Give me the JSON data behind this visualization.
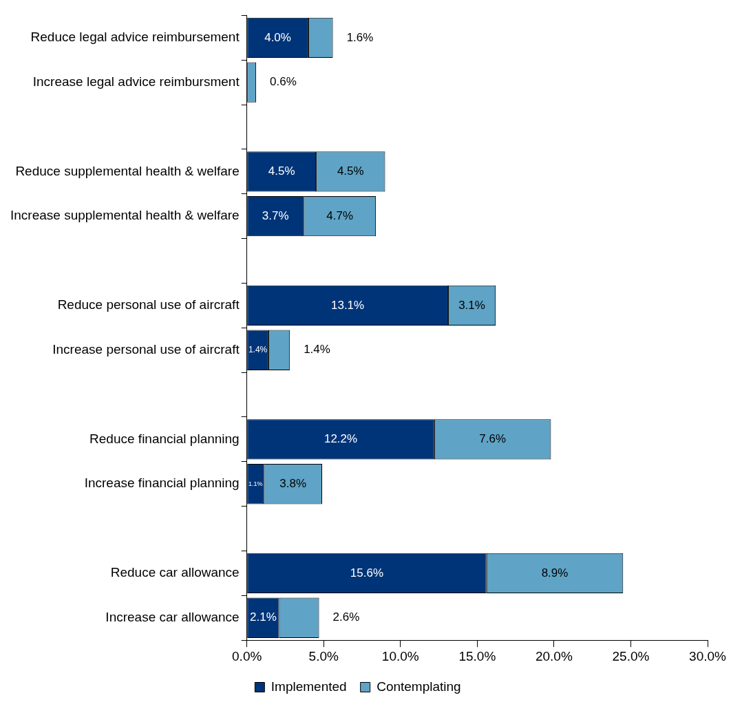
{
  "chart_data": {
    "type": "bar",
    "orientation": "horizontal",
    "stacked": true,
    "categories": [
      "Reduce legal advice reimbursement",
      "Increase legal advice reimbursment",
      null,
      "Reduce supplemental health & welfare",
      "Increase supplemental health & welfare",
      null,
      "Reduce personal use of aircraft",
      "Increase personal use of aircraft",
      null,
      "Reduce financial planning",
      "Increase financial planning",
      null,
      "Reduce car allowance",
      "Increase car allowance"
    ],
    "series": [
      {
        "name": "Implemented",
        "color": "#003478",
        "values": [
          4.0,
          null,
          null,
          4.5,
          3.7,
          null,
          13.1,
          1.4,
          null,
          12.2,
          1.1,
          null,
          15.6,
          2.1
        ],
        "value_labels": [
          "4.0%",
          null,
          null,
          "4.5%",
          "3.7%",
          null,
          "13.1%",
          "1.4%",
          null,
          "12.2%",
          "1.1%",
          null,
          "15.6%",
          "2.1%"
        ]
      },
      {
        "name": "Contemplating",
        "color": "#5fa3c6",
        "values": [
          1.6,
          0.6,
          null,
          4.5,
          4.7,
          null,
          3.1,
          1.4,
          null,
          7.6,
          3.8,
          null,
          8.9,
          2.6
        ],
        "value_labels": [
          "1.6%",
          "0.6%",
          null,
          "4.5%",
          "4.7%",
          null,
          "3.1%",
          "1.4%",
          null,
          "7.6%",
          "3.8%",
          null,
          "8.9%",
          "2.6%"
        ]
      }
    ],
    "xlim": [
      0,
      30
    ],
    "xticks": [
      {
        "value": 0,
        "label": "0.0%"
      },
      {
        "value": 5,
        "label": "5.0%"
      },
      {
        "value": 10,
        "label": "10.0%"
      },
      {
        "value": 15,
        "label": "15.0%"
      },
      {
        "value": 20,
        "label": "20.0%"
      },
      {
        "value": 25,
        "label": "25.0%"
      },
      {
        "value": 30,
        "label": "30.0%"
      }
    ],
    "grid": false,
    "legend": "bottom"
  }
}
